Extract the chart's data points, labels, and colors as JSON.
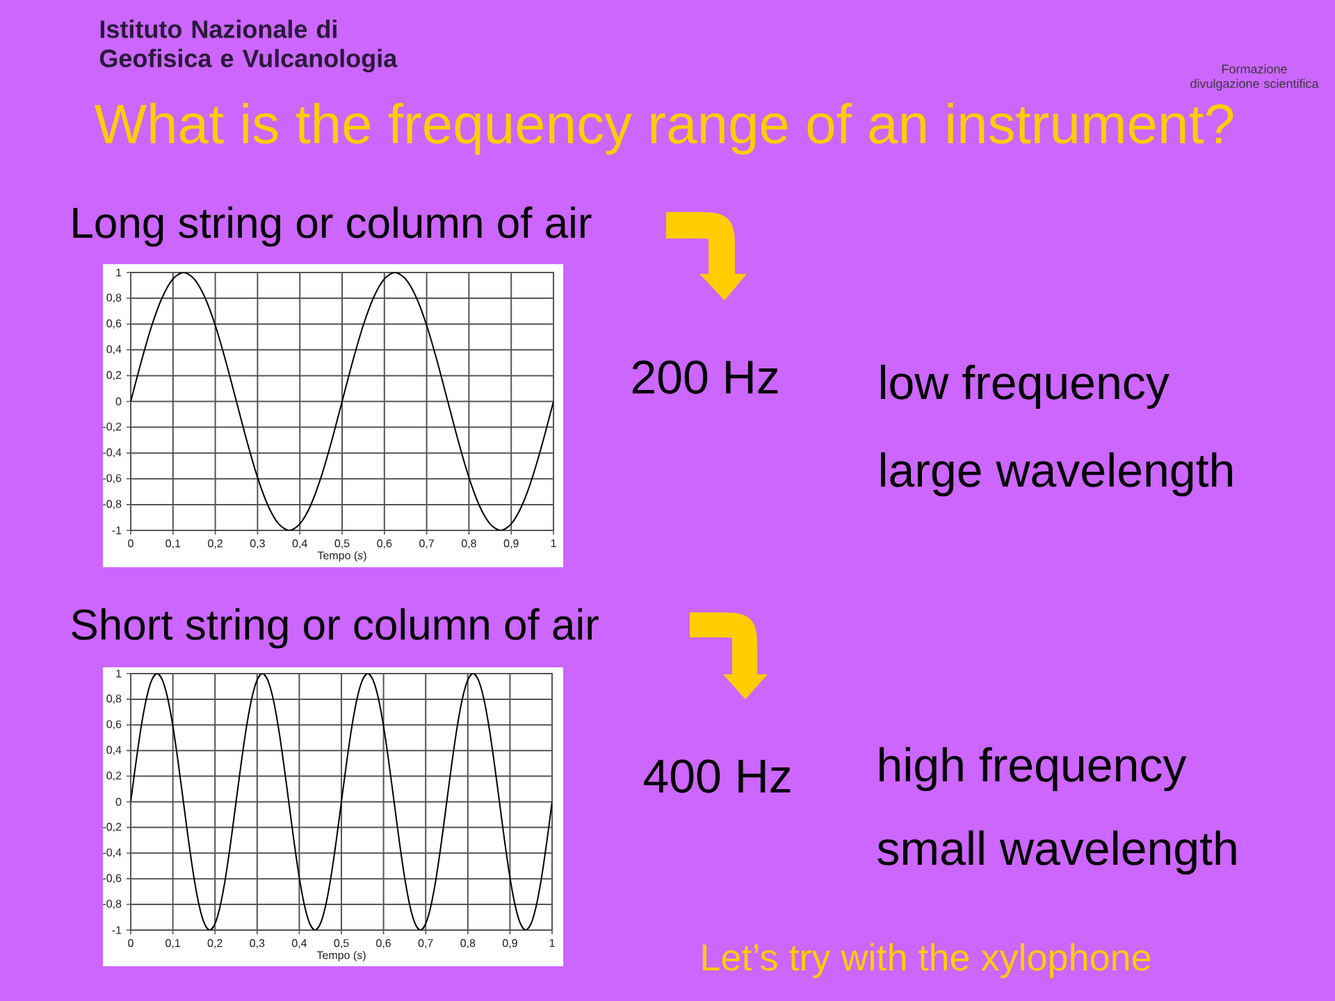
{
  "chart_data": [
    {
      "type": "line",
      "title": "What is the frequency range of an instrument?",
      "subtitle": "Long string or column of air",
      "xlabel": "Tempo (*s*)",
      "x": [
        0,
        0.025,
        0.05,
        0.075,
        0.1,
        0.125,
        0.15,
        0.175,
        0.2,
        0.225,
        0.25,
        0.275,
        0.3,
        0.325,
        0.35,
        0.375,
        0.4,
        0.425,
        0.45,
        0.475,
        0.5,
        0.525,
        0.55,
        0.575,
        0.6,
        0.625,
        0.65,
        0.675,
        0.7,
        0.725,
        0.75,
        0.775,
        0.8,
        0.825,
        0.85,
        0.875,
        0.9,
        0.925,
        0.95,
        0.975,
        1
      ],
      "values": [
        0,
        0.31,
        0.59,
        0.81,
        0.95,
        1,
        0.95,
        0.81,
        0.59,
        0.31,
        0,
        -0.31,
        -0.59,
        -0.81,
        -0.95,
        -1,
        -0.95,
        -0.81,
        -0.59,
        -0.31,
        0,
        0.31,
        0.59,
        0.81,
        0.95,
        1,
        0.95,
        0.81,
        0.59,
        0.31,
        0,
        -0.31,
        -0.59,
        -0.81,
        -0.95,
        -1,
        -0.95,
        -0.81,
        -0.59,
        -0.31,
        0
      ],
      "color": "#000000",
      "xlim": [
        0,
        1
      ],
      "ylim": [
        -1,
        1
      ],
      "xticks": [
        0,
        {
          "value": 0.1,
          "label": "0,1"
        },
        {
          "value": 0.2,
          "label": "0,2"
        },
        {
          "value": 0.3,
          "label": "0,3"
        },
        {
          "value": 0.4,
          "label": "0,4"
        },
        {
          "value": 0.5,
          "label": "0,5"
        },
        {
          "value": 0.6,
          "label": "0,6"
        },
        {
          "value": 0.7,
          "label": "0,7"
        },
        {
          "value": 0.8,
          "label": "0,8"
        },
        {
          "value": 0.9,
          "label": "0,9"
        },
        1
      ],
      "yticks": [
        -1,
        {
          "value": -0.8,
          "label": "-0,8"
        },
        {
          "value": -0.6,
          "label": "-0,6"
        },
        {
          "value": -0.4,
          "label": "-0,4"
        },
        {
          "value": -0.2,
          "label": "-0,2"
        },
        0,
        {
          "value": 0.2,
          "label": "0,2"
        },
        {
          "value": 0.4,
          "label": "0,4"
        },
        {
          "value": 0.6,
          "label": "0,6"
        },
        {
          "value": 0.8,
          "label": "0,8"
        },
        1
      ],
      "grid": true,
      "annotations": [
        "Istituto Nazionale di Geofisica e Vulcanologia",
        "Formazione divulgazione scientifica",
        "200 Hz",
        "low frequency",
        "large wavelength"
      ]
    },
    {
      "type": "line",
      "title": "Short string or column of air",
      "xlabel": "Tempo (*s*)",
      "x": [
        0,
        0.0125,
        0.025,
        0.0375,
        0.05,
        0.0625,
        0.075,
        0.0875,
        0.1,
        0.1125,
        0.125,
        0.1375,
        0.15,
        0.1625,
        0.175,
        0.1875,
        0.2,
        0.2125,
        0.225,
        0.2375,
        0.25,
        0.2625,
        0.275,
        0.2875,
        0.3,
        0.3125,
        0.325,
        0.3375,
        0.35,
        0.3625,
        0.375,
        0.3875,
        0.4,
        0.4125,
        0.425,
        0.4375,
        0.45,
        0.4625,
        0.475,
        0.4875,
        0.5,
        0.5125,
        0.525,
        0.5375,
        0.55,
        0.5625,
        0.575,
        0.5875,
        0.6,
        0.6125,
        0.625,
        0.6375,
        0.65,
        0.6625,
        0.675,
        0.6875,
        0.7,
        0.7125,
        0.725,
        0.7375,
        0.75,
        0.7625,
        0.775,
        0.7875,
        0.8,
        0.8125,
        0.825,
        0.8375,
        0.85,
        0.8625,
        0.875,
        0.8875,
        0.9,
        0.9125,
        0.925,
        0.9375,
        0.95,
        0.9625,
        0.975,
        0.9875,
        1
      ],
      "values": [
        0,
        0.31,
        0.59,
        0.81,
        0.95,
        1,
        0.95,
        0.81,
        0.59,
        0.31,
        0,
        -0.31,
        -0.59,
        -0.81,
        -0.95,
        -1,
        -0.95,
        -0.81,
        -0.59,
        -0.31,
        0,
        0.31,
        0.59,
        0.81,
        0.95,
        1,
        0.95,
        0.81,
        0.59,
        0.31,
        0,
        -0.31,
        -0.59,
        -0.81,
        -0.95,
        -1,
        -0.95,
        -0.81,
        -0.59,
        -0.31,
        0,
        0.31,
        0.59,
        0.81,
        0.95,
        1,
        0.95,
        0.81,
        0.59,
        0.31,
        0,
        -0.31,
        -0.59,
        -0.81,
        -0.95,
        -1,
        -0.95,
        -0.81,
        -0.59,
        -0.31,
        0,
        0.31,
        0.59,
        0.81,
        0.95,
        1,
        0.95,
        0.81,
        0.59,
        0.31,
        0,
        -0.31,
        -0.59,
        -0.81,
        -0.95,
        -1,
        -0.95,
        -0.81,
        -0.59,
        -0.31,
        0
      ],
      "color": "#000000",
      "xlim": [
        0,
        1
      ],
      "ylim": [
        -1,
        1
      ],
      "xticks": [
        0,
        {
          "value": 0.1,
          "label": "0,1"
        },
        {
          "value": 0.2,
          "label": "0,2"
        },
        {
          "value": 0.3,
          "label": "0,3"
        },
        {
          "value": 0.4,
          "label": "0,4"
        },
        {
          "value": 0.5,
          "label": "0,5"
        },
        {
          "value": 0.6,
          "label": "0,6"
        },
        {
          "value": 0.7,
          "label": "0,7"
        },
        {
          "value": 0.8,
          "label": "0,8"
        },
        {
          "value": 0.9,
          "label": "0,9"
        },
        1
      ],
      "yticks": [
        -1,
        {
          "value": -0.8,
          "label": "-0,8"
        },
        {
          "value": -0.6,
          "label": "-0,6"
        },
        {
          "value": -0.4,
          "label": "-0,4"
        },
        {
          "value": -0.2,
          "label": "-0,2"
        },
        0,
        {
          "value": 0.2,
          "label": "0,2"
        },
        {
          "value": 0.4,
          "label": "0,4"
        },
        {
          "value": 0.6,
          "label": "0,6"
        },
        {
          "value": 0.8,
          "label": "0,8"
        },
        1
      ],
      "grid": true,
      "annotations": [
        "400 Hz",
        "high frequency",
        "small wavelength",
        "Let’s try with the xylophone"
      ]
    }
  ]
}
